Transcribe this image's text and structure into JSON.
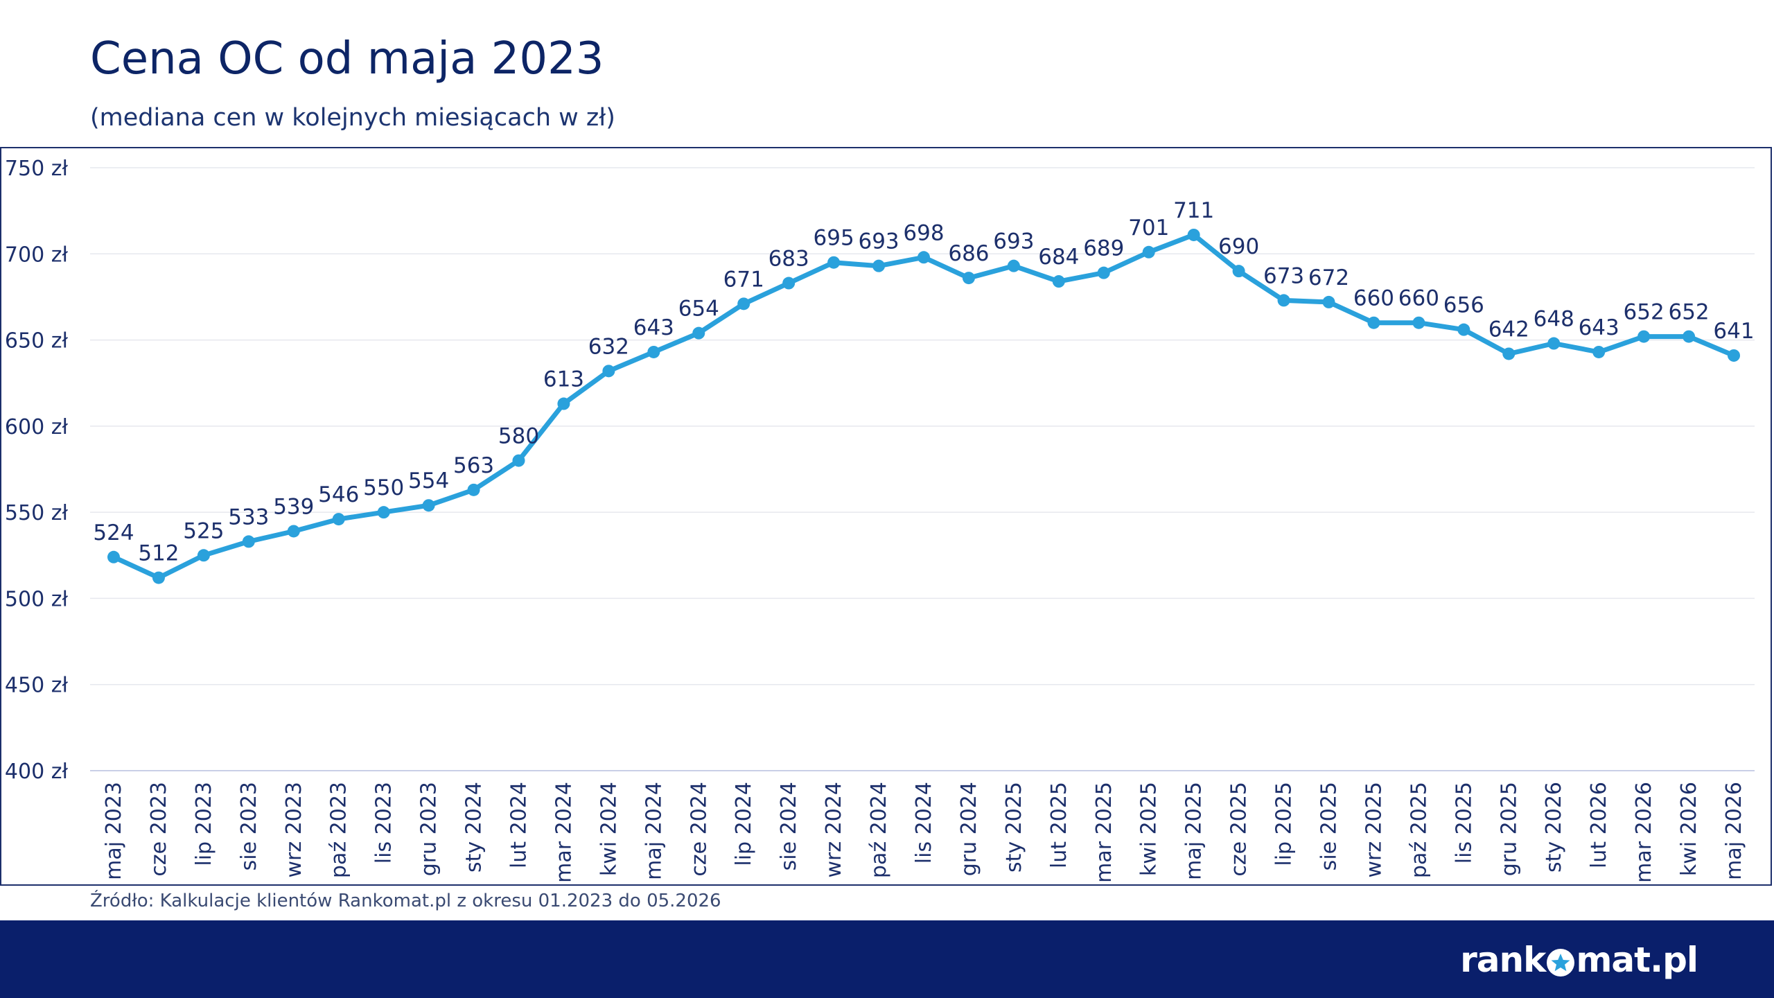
{
  "header": {
    "title": "Cena OC od maja 2023",
    "subtitle": "(mediana cen w kolejnych miesiącach w zł)"
  },
  "source_note": "Źródło: Kalkulacje klientów Rankomat.pl z okresu 01.2023 do 05.2026",
  "brand": {
    "logo_left": "rank",
    "logo_right": "mat.pl",
    "logo_icon": "star-in-circle-icon",
    "footer_color": "#0a1f6b"
  },
  "colors": {
    "series": "#2aa1dc",
    "text": "#1c2f6b",
    "title": "#0d2566"
  },
  "chart_data": {
    "type": "line",
    "title": "Cena OC od maja 2023",
    "subtitle": "(mediana cen w kolejnych miesiącach w zł)",
    "xlabel": "",
    "ylabel": "",
    "ylim": [
      400,
      750
    ],
    "yticks": [
      400,
      450,
      500,
      550,
      600,
      650,
      700,
      750
    ],
    "ytick_suffix": " zł",
    "grid": true,
    "legend": "none",
    "categories": [
      "maj 2023",
      "cze 2023",
      "lip 2023",
      "sie 2023",
      "wrz 2023",
      "paź 2023",
      "lis 2023",
      "gru 2023",
      "sty 2024",
      "lut 2024",
      "mar 2024",
      "kwi 2024",
      "maj 2024",
      "cze 2024",
      "lip 2024",
      "sie 2024",
      "wrz 2024",
      "paź 2024",
      "lis 2024",
      "gru 2024",
      "sty 2025",
      "lut 2025",
      "mar 2025",
      "kwi 2025",
      "maj 2025",
      "cze 2025",
      "lip 2025",
      "sie 2025",
      "wrz 2025",
      "paź 2025",
      "lis 2025",
      "gru 2025",
      "sty 2026",
      "lut 2026",
      "mar 2026",
      "kwi 2026",
      "maj 2026"
    ],
    "series": [
      {
        "values": [
          524,
          512,
          525,
          533,
          539,
          546,
          550,
          554,
          563,
          580,
          613,
          632,
          643,
          654,
          671,
          683,
          695,
          693,
          698,
          686,
          693,
          684,
          689,
          701,
          711,
          690,
          673,
          672,
          660,
          660,
          656,
          642,
          648,
          643,
          652,
          652,
          641
        ]
      }
    ]
  }
}
